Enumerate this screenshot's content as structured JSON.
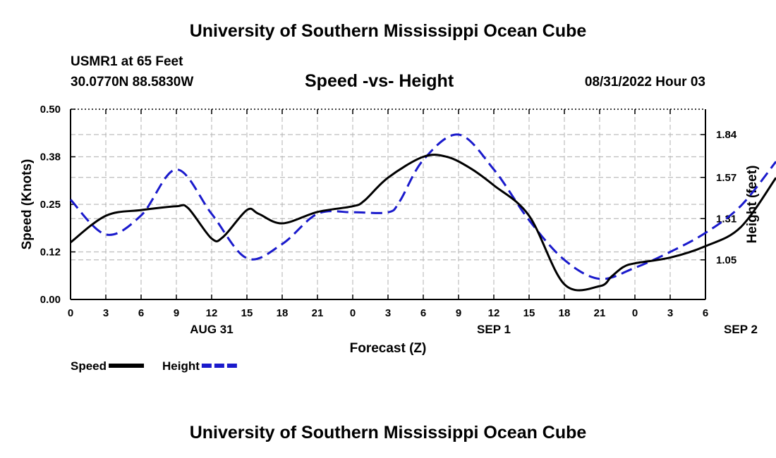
{
  "header": {
    "title": "University of Southern Mississippi Ocean Cube",
    "station": "USMR1 at 65 Feet",
    "position": "30.0770N  88.5830W",
    "chart_title": "Speed -vs- Height",
    "datetime": "08/31/2022 Hour 03"
  },
  "footer": {
    "title": "University of Southern Mississippi Ocean Cube"
  },
  "chart_data": {
    "type": "line",
    "title": "Speed -vs- Height",
    "xlabel": "Forecast (Z)",
    "ylabel": "Speed (Knots)",
    "y2label": "Height (feet)",
    "x_tick_labels": [
      "0",
      "3",
      "6",
      "9",
      "12",
      "15",
      "18",
      "21",
      "0",
      "3",
      "6",
      "9",
      "12",
      "15",
      "18",
      "21",
      "0",
      "3",
      "6"
    ],
    "date_labels": [
      {
        "label": "AUG 31",
        "hour_index": 12
      },
      {
        "label": "SEP 1",
        "hour_index": 36
      },
      {
        "label": "SEP 2",
        "hour_index": 57
      }
    ],
    "ylim": [
      0,
      0.5
    ],
    "y_ticks": [
      "0.00",
      "0.12",
      "0.25",
      "0.38",
      "0.50"
    ],
    "y_tick_values": [
      0,
      0.125,
      0.25,
      0.375,
      0.5
    ],
    "y2lim": [
      0.8,
      2.0
    ],
    "y2_ticks": [
      "1.05",
      "1.31",
      "1.57",
      "1.84"
    ],
    "y2_tick_values": [
      1.05,
      1.31,
      1.57,
      1.84
    ],
    "grid": true,
    "legend": [
      {
        "name": "Speed",
        "style": "solid",
        "color": "#000000"
      },
      {
        "name": "Height",
        "style": "dashed",
        "color": "#1a1acc"
      }
    ],
    "series": [
      {
        "name": "Speed",
        "axis": "left",
        "color": "#000000",
        "style": "solid",
        "x": [
          0,
          3,
          6,
          9,
          10,
          12,
          13,
          15,
          16,
          18,
          21,
          24,
          25,
          27,
          30,
          32,
          34,
          36,
          39,
          42,
          45,
          46,
          47,
          48,
          51,
          54,
          57,
          60
        ],
        "values": [
          0.15,
          0.22,
          0.235,
          0.245,
          0.24,
          0.16,
          0.165,
          0.235,
          0.225,
          0.2,
          0.23,
          0.245,
          0.26,
          0.32,
          0.375,
          0.375,
          0.345,
          0.3,
          0.22,
          0.04,
          0.035,
          0.06,
          0.085,
          0.095,
          0.11,
          0.14,
          0.19,
          0.32
        ]
      },
      {
        "name": "Height",
        "axis": "right",
        "color": "#1a1acc",
        "style": "dashed",
        "x": [
          0,
          3,
          6,
          9,
          12,
          15,
          18,
          21,
          24,
          27,
          28,
          30,
          33,
          36,
          39,
          42,
          45,
          48,
          51,
          54,
          57,
          60
        ],
        "values": [
          1.43,
          1.21,
          1.33,
          1.62,
          1.34,
          1.06,
          1.15,
          1.34,
          1.35,
          1.35,
          1.42,
          1.68,
          1.84,
          1.62,
          1.3,
          1.05,
          0.93,
          1.0,
          1.1,
          1.22,
          1.39,
          1.67
        ]
      }
    ]
  }
}
